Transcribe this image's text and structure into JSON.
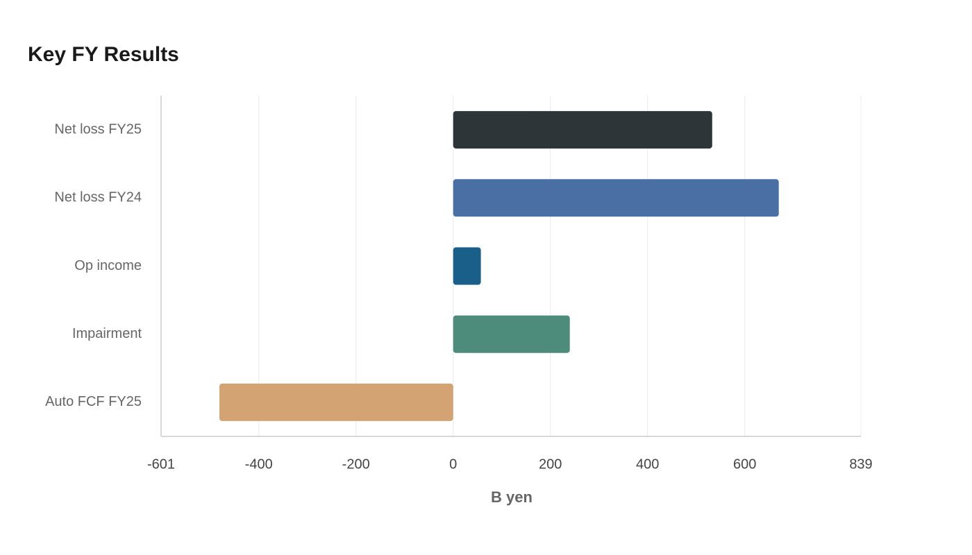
{
  "chart_data": {
    "type": "bar",
    "orientation": "horizontal",
    "title": "Key FY Results",
    "x_label": "B yen",
    "categories": [
      "Net loss FY25",
      "Net loss FY24",
      "Op income",
      "Impairment",
      "Auto FCF FY25"
    ],
    "values": [
      533,
      670,
      57,
      240,
      -481
    ],
    "colors": [
      "#2e3538",
      "#4a6fa5",
      "#1a5f8a",
      "#4d8c7a",
      "#d4a373"
    ],
    "xlim": [
      -601,
      839
    ],
    "xticks": [
      -601,
      -400,
      -200,
      0,
      200,
      400,
      600,
      839
    ],
    "grid": true
  }
}
